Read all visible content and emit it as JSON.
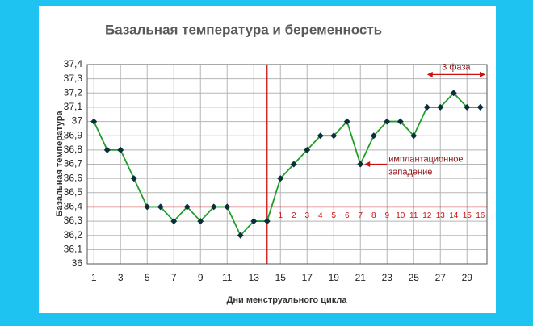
{
  "chart_data": {
    "type": "line",
    "title": "Базальная температура и беременность",
    "x_label": "Дни менструального цикла",
    "y_label": "Базальная температура",
    "x": [
      1,
      2,
      3,
      4,
      5,
      6,
      7,
      8,
      9,
      10,
      11,
      12,
      13,
      14,
      15,
      16,
      17,
      18,
      19,
      20,
      21,
      22,
      23,
      24,
      25,
      26,
      27,
      28,
      29,
      30
    ],
    "values": [
      37.0,
      36.8,
      36.8,
      36.6,
      36.4,
      36.4,
      36.3,
      36.4,
      36.3,
      36.4,
      36.4,
      36.2,
      36.3,
      36.3,
      36.6,
      36.7,
      36.8,
      36.9,
      36.9,
      37.0,
      36.7,
      36.9,
      37.0,
      37.0,
      36.9,
      37.1,
      37.1,
      37.2,
      37.1,
      37.1
    ],
    "color": "#1f9e2a",
    "marker_color": "#0b2f3a",
    "xlim": [
      0.5,
      30.5
    ],
    "xticks": [
      1,
      3,
      5,
      7,
      9,
      11,
      13,
      15,
      17,
      19,
      21,
      23,
      25,
      27,
      29
    ],
    "ylim": [
      36,
      37.4
    ],
    "yticks": [
      36,
      {
        "value": 36.1,
        "label": "36,1"
      },
      {
        "value": 36.2,
        "label": "36,2"
      },
      {
        "value": 36.3,
        "label": "36,3"
      },
      {
        "value": 36.4,
        "label": "36,4"
      },
      {
        "value": 36.5,
        "label": "36,5"
      },
      {
        "value": 36.6,
        "label": "36,6"
      },
      {
        "value": 36.7,
        "label": "36,7"
      },
      {
        "value": 36.8,
        "label": "36,8"
      },
      {
        "value": 36.9,
        "label": "36,9"
      },
      37,
      {
        "value": 37.1,
        "label": "37,1"
      },
      {
        "value": 37.2,
        "label": "37,2"
      },
      {
        "value": 37.3,
        "label": "37,3"
      },
      {
        "value": 37.4,
        "label": "37,4"
      }
    ],
    "grid": true,
    "reference_color": "#cc1111",
    "hline": 36.4,
    "vline": 14,
    "phase_day_numbers": [
      1,
      2,
      3,
      4,
      5,
      6,
      7,
      8,
      9,
      10,
      11,
      12,
      13,
      14,
      15,
      16
    ],
    "implantation_note": [
      "имплантационное",
      "западение"
    ],
    "implantation_day": 21,
    "phase_label": "3 фаза",
    "phase_start_day": 26
  }
}
